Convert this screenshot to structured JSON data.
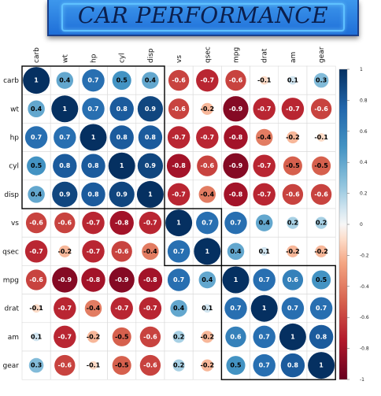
{
  "banner": {
    "title": "CAR PERFORMANCE"
  },
  "chart_data": {
    "type": "heatmap",
    "variables": [
      "carb",
      "wt",
      "hp",
      "cyl",
      "disp",
      "vs",
      "qsec",
      "mpg",
      "drat",
      "am",
      "gear"
    ],
    "matrix": [
      [
        1,
        0.4,
        0.7,
        0.5,
        0.4,
        -0.6,
        -0.7,
        -0.6,
        -0.1,
        0.1,
        0.3
      ],
      [
        0.4,
        1,
        0.7,
        0.8,
        0.9,
        -0.6,
        -0.2,
        -0.9,
        -0.7,
        -0.7,
        -0.6
      ],
      [
        0.7,
        0.7,
        1,
        0.8,
        0.8,
        -0.7,
        -0.7,
        -0.8,
        -0.4,
        -0.2,
        -0.1
      ],
      [
        0.5,
        0.8,
        0.8,
        1,
        0.9,
        -0.8,
        -0.6,
        -0.9,
        -0.7,
        -0.5,
        -0.5
      ],
      [
        0.4,
        0.9,
        0.8,
        0.9,
        1,
        -0.7,
        -0.4,
        -0.8,
        -0.7,
        -0.6,
        -0.6
      ],
      [
        -0.6,
        -0.6,
        -0.7,
        -0.8,
        -0.7,
        1,
        0.7,
        0.7,
        0.4,
        0.2,
        0.2
      ],
      [
        -0.7,
        -0.2,
        -0.7,
        -0.6,
        -0.4,
        0.7,
        1,
        0.4,
        0.1,
        -0.2,
        -0.2
      ],
      [
        -0.6,
        -0.9,
        -0.8,
        -0.9,
        -0.8,
        0.7,
        0.4,
        1,
        0.7,
        0.6,
        0.5
      ],
      [
        -0.1,
        -0.7,
        -0.4,
        -0.7,
        -0.7,
        0.4,
        0.1,
        0.7,
        1,
        0.7,
        0.7
      ],
      [
        0.1,
        -0.7,
        -0.2,
        -0.5,
        -0.6,
        0.2,
        -0.2,
        0.6,
        0.7,
        1,
        0.8
      ],
      [
        0.3,
        -0.6,
        -0.1,
        -0.5,
        -0.6,
        0.2,
        -0.2,
        0.5,
        0.7,
        0.8,
        1
      ]
    ],
    "clusters": [
      [
        "carb",
        "disp"
      ],
      [
        "vs",
        "qsec"
      ],
      [
        "mpg",
        "gear"
      ]
    ],
    "color_scale": {
      "low": "#67001f",
      "mid": "#f7f7f7",
      "high": "#053061"
    },
    "legend": {
      "range": [
        -1,
        1
      ],
      "ticks": [
        "1",
        "0.8",
        "0.6",
        "0.4",
        "0.2",
        "0",
        "-0.2",
        "-0.4",
        "-0.6",
        "-0.8",
        "-1"
      ]
    }
  }
}
